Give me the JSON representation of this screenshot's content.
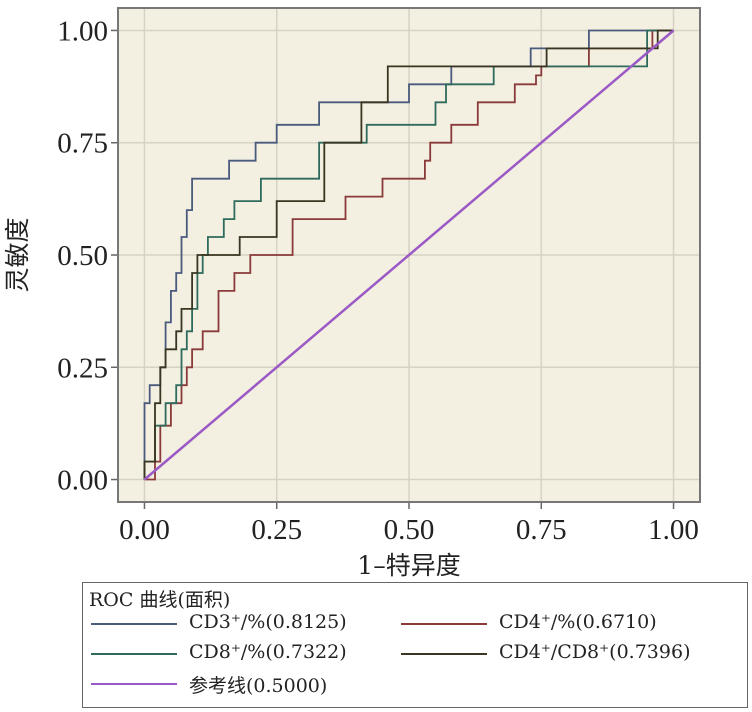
{
  "chart_data": {
    "type": "line",
    "xlabel": "1–特异度",
    "ylabel": "灵敏度",
    "xlim": [
      -0.05,
      1.05
    ],
    "ylim": [
      -0.05,
      1.05
    ],
    "xticks": [
      "0.00",
      "0.25",
      "0.50",
      "0.75",
      "1.00"
    ],
    "yticks": [
      "0.00",
      "0.25",
      "0.50",
      "0.75",
      "1.00"
    ],
    "grid": true,
    "background": "#f3efe1",
    "legend": {
      "title": "ROC 曲线(面积)",
      "placement": "bottom"
    },
    "series": [
      {
        "name": "CD3⁺/%(0.8125)",
        "color": "#4a5b7d",
        "x": [
          0.0,
          0.0,
          0.01,
          0.01,
          0.03,
          0.03,
          0.04,
          0.04,
          0.05,
          0.05,
          0.06,
          0.06,
          0.07,
          0.07,
          0.08,
          0.08,
          0.09,
          0.09,
          0.16,
          0.16,
          0.21,
          0.21,
          0.25,
          0.25,
          0.33,
          0.33,
          0.5,
          0.5,
          0.58,
          0.58,
          0.6,
          0.6,
          0.73,
          0.73,
          0.84,
          0.84,
          0.98,
          0.98,
          1.0
        ],
        "y": [
          0.0,
          0.17,
          0.17,
          0.21,
          0.21,
          0.25,
          0.25,
          0.35,
          0.35,
          0.42,
          0.42,
          0.46,
          0.46,
          0.54,
          0.54,
          0.6,
          0.6,
          0.67,
          0.67,
          0.71,
          0.71,
          0.75,
          0.75,
          0.79,
          0.79,
          0.84,
          0.84,
          0.88,
          0.88,
          0.92,
          0.92,
          0.92,
          0.92,
          0.96,
          0.96,
          1.0,
          1.0,
          1.0,
          1.0
        ]
      },
      {
        "name": "CD4⁺/%(0.6710)",
        "color": "#8b3a3a",
        "x": [
          0.0,
          0.0,
          0.02,
          0.02,
          0.03,
          0.03,
          0.05,
          0.05,
          0.07,
          0.07,
          0.08,
          0.08,
          0.09,
          0.09,
          0.11,
          0.11,
          0.14,
          0.14,
          0.17,
          0.17,
          0.2,
          0.2,
          0.28,
          0.28,
          0.38,
          0.38,
          0.45,
          0.45,
          0.53,
          0.53,
          0.54,
          0.54,
          0.58,
          0.58,
          0.63,
          0.63,
          0.7,
          0.7,
          0.74,
          0.74,
          0.75,
          0.75,
          0.84,
          0.84,
          0.96,
          0.96,
          1.0
        ],
        "y": [
          0.0,
          0.0,
          0.0,
          0.04,
          0.04,
          0.12,
          0.12,
          0.17,
          0.17,
          0.21,
          0.21,
          0.25,
          0.25,
          0.29,
          0.29,
          0.33,
          0.33,
          0.42,
          0.42,
          0.46,
          0.46,
          0.5,
          0.5,
          0.58,
          0.58,
          0.63,
          0.63,
          0.67,
          0.67,
          0.71,
          0.71,
          0.75,
          0.75,
          0.79,
          0.79,
          0.84,
          0.84,
          0.88,
          0.88,
          0.9,
          0.9,
          0.92,
          0.92,
          0.96,
          0.96,
          1.0,
          1.0
        ]
      },
      {
        "name": "CD8⁺/%(0.7322)",
        "color": "#2e6b5c",
        "x": [
          0.0,
          0.0,
          0.02,
          0.02,
          0.04,
          0.04,
          0.06,
          0.06,
          0.07,
          0.07,
          0.08,
          0.08,
          0.09,
          0.09,
          0.1,
          0.1,
          0.11,
          0.11,
          0.12,
          0.12,
          0.15,
          0.15,
          0.17,
          0.17,
          0.22,
          0.22,
          0.33,
          0.33,
          0.42,
          0.42,
          0.55,
          0.55,
          0.57,
          0.57,
          0.66,
          0.66,
          0.75,
          0.75,
          0.95,
          0.95,
          1.0
        ],
        "y": [
          0.0,
          0.04,
          0.04,
          0.12,
          0.12,
          0.17,
          0.17,
          0.21,
          0.21,
          0.29,
          0.29,
          0.33,
          0.33,
          0.38,
          0.38,
          0.46,
          0.46,
          0.5,
          0.5,
          0.54,
          0.54,
          0.58,
          0.58,
          0.62,
          0.62,
          0.67,
          0.67,
          0.75,
          0.75,
          0.79,
          0.79,
          0.84,
          0.84,
          0.88,
          0.88,
          0.92,
          0.92,
          0.92,
          0.92,
          1.0,
          1.0
        ]
      },
      {
        "name": "CD4⁺/CD8⁺(0.7396)",
        "color": "#3a3520",
        "x": [
          0.0,
          0.0,
          0.01,
          0.01,
          0.02,
          0.02,
          0.03,
          0.03,
          0.04,
          0.04,
          0.06,
          0.06,
          0.07,
          0.07,
          0.09,
          0.09,
          0.1,
          0.1,
          0.18,
          0.18,
          0.25,
          0.25,
          0.34,
          0.34,
          0.41,
          0.41,
          0.46,
          0.46,
          0.53,
          0.53,
          0.76,
          0.76,
          0.97,
          0.97,
          1.0
        ],
        "y": [
          0.0,
          0.04,
          0.04,
          0.04,
          0.04,
          0.17,
          0.17,
          0.25,
          0.25,
          0.29,
          0.29,
          0.33,
          0.33,
          0.38,
          0.38,
          0.46,
          0.46,
          0.5,
          0.5,
          0.54,
          0.54,
          0.62,
          0.62,
          0.75,
          0.75,
          0.84,
          0.84,
          0.92,
          0.92,
          0.92,
          0.92,
          0.96,
          0.96,
          1.0,
          1.0
        ]
      },
      {
        "name": "参考线(0.5000)",
        "color": "#9b59c6",
        "x": [
          0.0,
          1.0
        ],
        "y": [
          0.0,
          1.0
        ]
      }
    ]
  }
}
